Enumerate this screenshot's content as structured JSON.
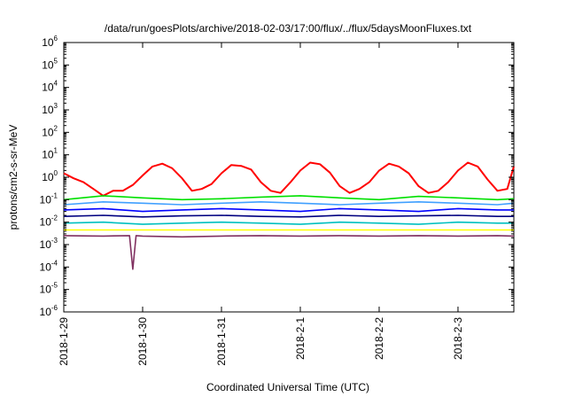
{
  "chart_data": {
    "type": "line",
    "title": "/data/run/goesPlots/archive/2018-02-03/17:00/flux/../flux/5daysMoonFluxes.txt",
    "xlabel": "Coordinated Universal Time (UTC)",
    "ylabel": "protons/cm2-s-sr-MeV",
    "y_scale": "log",
    "ylim": [
      1e-06,
      1000000.0
    ],
    "xlim": [
      "2018-01-29T00:00",
      "2018-02-03T17:00"
    ],
    "x_ticks": [
      "2018-1-29",
      "2018-1-30",
      "2018-1-31",
      "2018-2-1",
      "2018-2-2",
      "2018-2-3"
    ],
    "y_ticks": [
      {
        "base": "10",
        "exp": "6"
      },
      {
        "base": "10",
        "exp": "5"
      },
      {
        "base": "10",
        "exp": "4"
      },
      {
        "base": "10",
        "exp": "3"
      },
      {
        "base": "10",
        "exp": "2"
      },
      {
        "base": "10",
        "exp": "1"
      },
      {
        "base": "10",
        "exp": "0"
      },
      {
        "base": "10",
        "exp": "-1"
      },
      {
        "base": "10",
        "exp": "-2"
      },
      {
        "base": "10",
        "exp": "-3"
      },
      {
        "base": "10",
        "exp": "-4"
      },
      {
        "base": "10",
        "exp": "-5"
      },
      {
        "base": "10",
        "exp": "-6"
      }
    ],
    "grid": false,
    "series": [
      {
        "color": "#ff0000",
        "x": [
          "2018-01-29T00:00",
          "2018-01-29T03:00",
          "2018-01-29T06:00",
          "2018-01-29T09:00",
          "2018-01-29T12:00",
          "2018-01-29T15:00",
          "2018-01-29T18:00",
          "2018-01-29T21:00",
          "2018-01-30T00:00",
          "2018-01-30T03:00",
          "2018-01-30T06:00",
          "2018-01-30T09:00",
          "2018-01-30T12:00",
          "2018-01-30T15:00",
          "2018-01-30T18:00",
          "2018-01-30T21:00",
          "2018-01-31T00:00",
          "2018-01-31T03:00",
          "2018-01-31T06:00",
          "2018-01-31T09:00",
          "2018-01-31T12:00",
          "2018-01-31T15:00",
          "2018-01-31T18:00",
          "2018-01-31T21:00",
          "2018-02-01T00:00",
          "2018-02-01T03:00",
          "2018-02-01T06:00",
          "2018-02-01T09:00",
          "2018-02-01T12:00",
          "2018-02-01T15:00",
          "2018-02-01T18:00",
          "2018-02-01T21:00",
          "2018-02-02T00:00",
          "2018-02-02T03:00",
          "2018-02-02T06:00",
          "2018-02-02T09:00",
          "2018-02-02T12:00",
          "2018-02-02T15:00",
          "2018-02-02T18:00",
          "2018-02-02T21:00",
          "2018-02-03T00:00",
          "2018-02-03T03:00",
          "2018-02-03T06:00",
          "2018-02-03T09:00",
          "2018-02-03T12:00",
          "2018-02-03T15:00",
          "2018-02-03T17:00"
        ],
        "values": [
          1.5,
          0.9,
          0.6,
          0.3,
          0.15,
          0.25,
          0.25,
          0.45,
          1.2,
          3.0,
          4.0,
          2.5,
          0.9,
          0.25,
          0.3,
          0.5,
          1.5,
          3.5,
          3.2,
          2.2,
          0.6,
          0.25,
          0.2,
          0.6,
          2.0,
          4.5,
          3.8,
          1.6,
          0.4,
          0.2,
          0.3,
          0.6,
          2.0,
          4.0,
          3.0,
          1.5,
          0.4,
          0.2,
          0.25,
          0.6,
          2.0,
          4.5,
          3.0,
          0.8,
          0.25,
          0.3,
          3.0
        ]
      },
      {
        "color": "#00e000",
        "x": [
          "2018-01-29T00:00",
          "2018-01-29T12:00",
          "2018-01-30T00:00",
          "2018-01-30T12:00",
          "2018-01-31T00:00",
          "2018-01-31T12:00",
          "2018-02-01T00:00",
          "2018-02-01T12:00",
          "2018-02-02T00:00",
          "2018-02-02T12:00",
          "2018-02-03T00:00",
          "2018-02-03T12:00",
          "2018-02-03T17:00"
        ],
        "values": [
          0.1,
          0.15,
          0.12,
          0.1,
          0.11,
          0.13,
          0.15,
          0.12,
          0.1,
          0.14,
          0.12,
          0.1,
          0.11
        ]
      },
      {
        "color": "#40a0ff",
        "x": [
          "2018-01-29T00:00",
          "2018-01-29T12:00",
          "2018-01-30T00:00",
          "2018-01-30T12:00",
          "2018-01-31T00:00",
          "2018-01-31T12:00",
          "2018-02-01T00:00",
          "2018-02-01T12:00",
          "2018-02-02T00:00",
          "2018-02-02T12:00",
          "2018-02-03T00:00",
          "2018-02-03T12:00",
          "2018-02-03T17:00"
        ],
        "values": [
          0.06,
          0.08,
          0.07,
          0.06,
          0.07,
          0.08,
          0.07,
          0.06,
          0.07,
          0.08,
          0.07,
          0.06,
          0.07
        ]
      },
      {
        "color": "#0000ff",
        "x": [
          "2018-01-29T00:00",
          "2018-01-29T12:00",
          "2018-01-30T00:00",
          "2018-01-30T12:00",
          "2018-01-31T00:00",
          "2018-01-31T12:00",
          "2018-02-01T00:00",
          "2018-02-01T12:00",
          "2018-02-02T00:00",
          "2018-02-02T12:00",
          "2018-02-03T00:00",
          "2018-02-03T12:00",
          "2018-02-03T17:00"
        ],
        "values": [
          0.035,
          0.04,
          0.03,
          0.035,
          0.04,
          0.035,
          0.03,
          0.04,
          0.035,
          0.03,
          0.04,
          0.035,
          0.035
        ]
      },
      {
        "color": "#000080",
        "x": [
          "2018-01-29T00:00",
          "2018-01-29T12:00",
          "2018-01-30T00:00",
          "2018-01-30T12:00",
          "2018-01-31T00:00",
          "2018-01-31T12:00",
          "2018-02-01T00:00",
          "2018-02-01T12:00",
          "2018-02-02T00:00",
          "2018-02-02T12:00",
          "2018-02-03T00:00",
          "2018-02-03T12:00",
          "2018-02-03T17:00"
        ],
        "values": [
          0.018,
          0.02,
          0.017,
          0.019,
          0.02,
          0.018,
          0.017,
          0.02,
          0.018,
          0.019,
          0.02,
          0.018,
          0.018
        ]
      },
      {
        "color": "#00c0c0",
        "x": [
          "2018-01-29T00:00",
          "2018-01-29T12:00",
          "2018-01-30T00:00",
          "2018-01-30T12:00",
          "2018-01-31T00:00",
          "2018-01-31T12:00",
          "2018-02-01T00:00",
          "2018-02-01T12:00",
          "2018-02-02T00:00",
          "2018-02-02T12:00",
          "2018-02-03T00:00",
          "2018-02-03T12:00",
          "2018-02-03T17:00"
        ],
        "values": [
          0.009,
          0.01,
          0.008,
          0.009,
          0.01,
          0.009,
          0.008,
          0.01,
          0.009,
          0.008,
          0.01,
          0.009,
          0.009
        ]
      },
      {
        "color": "#ffff00",
        "x": [
          "2018-01-29T00:00",
          "2018-01-29T12:00",
          "2018-01-30T00:00",
          "2018-01-30T12:00",
          "2018-01-31T00:00",
          "2018-01-31T12:00",
          "2018-02-01T00:00",
          "2018-02-01T12:00",
          "2018-02-02T00:00",
          "2018-02-02T12:00",
          "2018-02-03T00:00",
          "2018-02-03T12:00",
          "2018-02-03T17:00"
        ],
        "values": [
          0.0045,
          0.0045,
          0.0045,
          0.0045,
          0.0045,
          0.0045,
          0.0045,
          0.0045,
          0.0045,
          0.0045,
          0.0045,
          0.0045,
          0.0045
        ]
      },
      {
        "color": "#803060",
        "x": [
          "2018-01-29T00:00",
          "2018-01-29T12:00",
          "2018-01-29T20:00",
          "2018-01-29T21:00",
          "2018-01-29T22:00",
          "2018-01-30T00:00",
          "2018-01-30T12:00",
          "2018-01-31T00:00",
          "2018-01-31T12:00",
          "2018-02-01T00:00",
          "2018-02-01T12:00",
          "2018-02-02T00:00",
          "2018-02-02T12:00",
          "2018-02-03T00:00",
          "2018-02-03T12:00",
          "2018-02-03T17:00"
        ],
        "values": [
          0.0025,
          0.0024,
          0.0025,
          8e-05,
          0.0025,
          0.0024,
          0.0022,
          0.0024,
          0.0025,
          0.0024,
          0.0025,
          0.0024,
          0.0025,
          0.0024,
          0.0025,
          0.0024
        ]
      }
    ]
  }
}
